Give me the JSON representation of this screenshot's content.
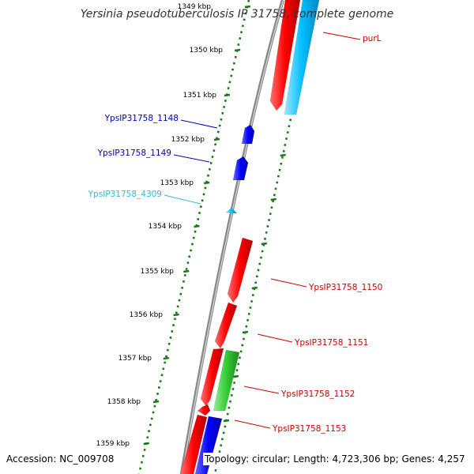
{
  "title": "Yersinia pseudotuberculosis IP 31758, complete genome",
  "footer": {
    "accession": "Accession: NC_009708",
    "topology": "Topology: circular; Length: 4,723,306 bp; Genes: 4,257"
  },
  "colors": {
    "forward_gene": "#ff0000",
    "reverse_gene": "#0000ff",
    "rna_gene": "#00bfff",
    "green_gene": "#33cc33",
    "tick": "#1a7a1a",
    "backbone": "#888888"
  },
  "scale_ticks": [
    "1349 kbp",
    "1350 kbp",
    "1351 kbp",
    "1352 kbp",
    "1353 kbp",
    "1354 kbp",
    "1355 kbp",
    "1356 kbp",
    "1357 kbp",
    "1358 kbp",
    "1359 kbp"
  ],
  "gene_labels": [
    {
      "text": "purL",
      "color": "#cc0000",
      "side": "right"
    },
    {
      "text": "YpsIP31758_1148",
      "color": "#0000aa",
      "side": "left"
    },
    {
      "text": "YpsIP31758_1149",
      "color": "#0000aa",
      "side": "left"
    },
    {
      "text": "YpsIP31758_4309",
      "color": "#33bbdd",
      "side": "left"
    },
    {
      "text": "YpsIP31758_1150",
      "color": "#cc0000",
      "side": "right"
    },
    {
      "text": "YpsIP31758_1151",
      "color": "#cc0000",
      "side": "right"
    },
    {
      "text": "YpsIP31758_1152",
      "color": "#cc0000",
      "side": "right"
    },
    {
      "text": "YpsIP31758_1153",
      "color": "#cc0000",
      "side": "right"
    }
  ]
}
